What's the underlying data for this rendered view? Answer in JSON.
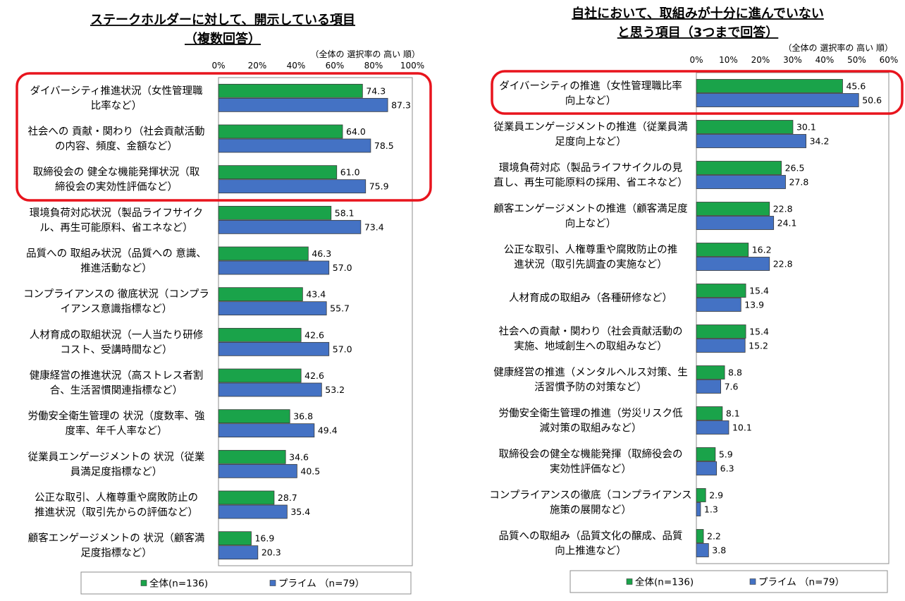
{
  "chart_data": [
    {
      "type": "bar",
      "orientation": "horizontal",
      "title_lines": [
        "ステークホルダーに対して、開示している項目",
        "（複数回答）"
      ],
      "sort_note": "（全体の 選択率の 高い 順）",
      "xlim": [
        0,
        100
      ],
      "tick_step": 20,
      "tick_labels": [
        "0%",
        "20%",
        "40%",
        "60%",
        "80%",
        "100%"
      ],
      "categories": [
        [
          "ダイバーシティ推進状況（女性管理職",
          "比率など）"
        ],
        [
          "社会への 貢献・関わり（社会貢献活動",
          "の内容、頻度、金額など）"
        ],
        [
          "取締役会の 健全な機能発揮状況（取",
          "締役会の実効性評価など）"
        ],
        [
          "環境負荷対応状況（製品ライフサイク",
          "ル、再生可能原料、省エネなど）"
        ],
        [
          "品質への 取組み状況（品質への 意識、",
          "推進活動など）"
        ],
        [
          "コンプライアンスの 徹底状況（コンプラ",
          "イアンス意識指標など）"
        ],
        [
          "人材育成の取組状況（一人当たり研修",
          "コスト、受講時間など）"
        ],
        [
          "健康経営の推進状況（高ストレス者割",
          "合、生活習慣関連指標など）"
        ],
        [
          "労働安全衛生管理の 状況（度数率、強",
          "度率、年千人率など）"
        ],
        [
          "従業員エンゲージメントの 状況（従業",
          "員満足度指標など）"
        ],
        [
          "公正な取引、人権尊重や腐敗防止の",
          "推進状況（取引先からの評価など）"
        ],
        [
          "顧客エンゲージメントの 状況（顧客満",
          "足度指標など）"
        ]
      ],
      "series": [
        {
          "name": "全体(n=136)",
          "color": "#1aa34a",
          "values": [
            74.3,
            64.0,
            61.0,
            58.1,
            46.3,
            43.4,
            42.6,
            42.6,
            36.8,
            34.6,
            28.7,
            16.9
          ],
          "value_labels": [
            "74.3",
            "64.0",
            "61.0",
            "58.1",
            "46.3",
            "43.4",
            "42.6",
            "42.6",
            "36.8",
            "34.6",
            "28.7",
            "16.9"
          ]
        },
        {
          "name": "プライム （n=79）",
          "color": "#4472c4",
          "values": [
            87.3,
            78.5,
            75.9,
            73.4,
            57.0,
            55.7,
            57.0,
            53.2,
            49.4,
            40.5,
            35.4,
            20.3
          ],
          "value_labels": [
            "87.3",
            "78.5",
            "75.9",
            "73.4",
            "57.0",
            "55.7",
            "57.0",
            "53.2",
            "49.4",
            "40.5",
            "35.4",
            "20.3"
          ]
        }
      ],
      "highlight_categories": [
        0,
        1,
        2
      ],
      "highlight_color": "#e8141d",
      "legend": [
        "全体(n=136)",
        "プライム （n=79）"
      ]
    },
    {
      "type": "bar",
      "orientation": "horizontal",
      "title_lines": [
        "自社において、取組みが十分に進んでいない",
        "と思う項目（3つまで回答）"
      ],
      "sort_note": "（全体の 選択率の 高い 順）",
      "xlim": [
        0,
        60
      ],
      "tick_step": 10,
      "tick_labels": [
        "0%",
        "10%",
        "20%",
        "30%",
        "40%",
        "50%",
        "60%"
      ],
      "categories": [
        [
          "ダイバーシティの推進（女性管理職比率",
          "向上など）"
        ],
        [
          "従業員エンゲージメントの推進（従業員満",
          "足度向上など）"
        ],
        [
          "環境負荷対応（製品ライフサイクルの見",
          "直し、再生可能原料の採用、省エネなど）"
        ],
        [
          "顧客エンゲージメントの推進（顧客満足度",
          "向上など）"
        ],
        [
          "公正な取引、人権尊重や腐敗防止の推",
          "進状況（取引先調査の実施など）"
        ],
        [
          "人材育成の取組み（各種研修など）"
        ],
        [
          "社会への貢献・関わり（社会貢献活動の",
          "実施、地域創生への取組みなど）"
        ],
        [
          "健康経営の推進（メンタルヘルス対策、生",
          "活習慣予防の対策など）"
        ],
        [
          "労働安全衛生管理の推進（労災リスク低",
          "減対策の取組みなど）"
        ],
        [
          "取締役会の健全な機能発揮（取締役会の",
          "実効性評価など）"
        ],
        [
          "コンプライアンスの徹底（コンプライアンス",
          "施策の展開など）"
        ],
        [
          "品質への取組み（品質文化の醸成、品質",
          "向上推進など）"
        ]
      ],
      "series": [
        {
          "name": "全体(n=136)",
          "color": "#1aa34a",
          "values": [
            45.6,
            30.1,
            26.5,
            22.8,
            16.2,
            15.4,
            15.4,
            8.8,
            8.1,
            5.9,
            2.9,
            2.2
          ],
          "value_labels": [
            "45.6",
            "30.1",
            "26.5",
            "22.8",
            "16.2",
            "15.4",
            "15.4",
            "8.8",
            "8.1",
            "5.9",
            "2.9",
            "2.2"
          ]
        },
        {
          "name": "プライム （n=79）",
          "color": "#4472c4",
          "values": [
            50.6,
            34.2,
            27.8,
            24.1,
            22.8,
            13.9,
            15.2,
            7.6,
            10.1,
            6.3,
            1.3,
            3.8
          ],
          "value_labels": [
            "50.6",
            "34.2",
            "27.8",
            "24.1",
            "22.8",
            "13.9",
            "15.2",
            "7.6",
            "10.1",
            "6.3",
            "1.3",
            "3.8"
          ]
        }
      ],
      "highlight_categories": [
        0
      ],
      "highlight_color": "#e8141d",
      "legend": [
        "全体(n=136)",
        "プライム （n=79）"
      ]
    }
  ]
}
